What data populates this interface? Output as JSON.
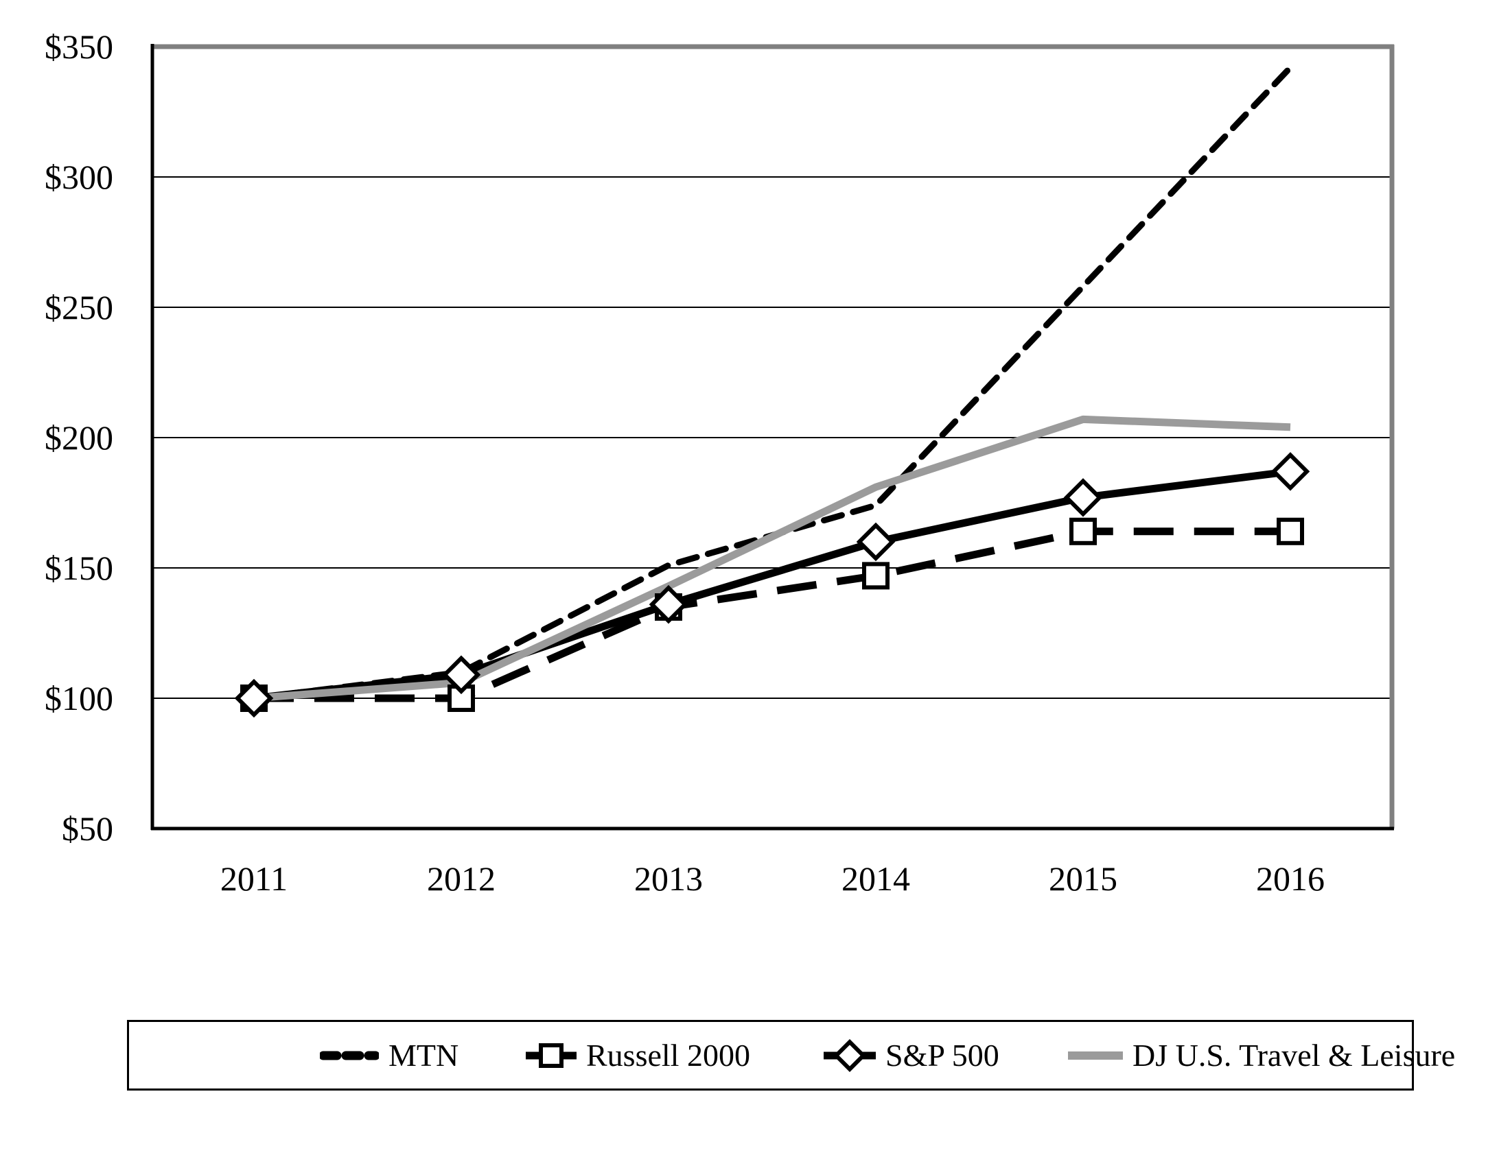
{
  "chart_data": {
    "type": "line",
    "title": "",
    "x_labels": [
      "2011",
      "2012",
      "2013",
      "2014",
      "2015",
      "2016"
    ],
    "y_ticks": [
      50,
      100,
      150,
      200,
      250,
      300,
      350
    ],
    "y_tick_labels": [
      "$50",
      "$100",
      "$150",
      "$200",
      "$250",
      "$300",
      "$350"
    ],
    "ylim": [
      50,
      350
    ],
    "grid": "horizontal",
    "legend_position": "bottom",
    "series": [
      {
        "name": "MTN",
        "values": [
          100,
          110,
          151,
          174,
          258,
          342
        ],
        "color": "#000000",
        "style": "short-dash",
        "marker": "none"
      },
      {
        "name": "Russell 2000",
        "values": [
          100,
          100,
          135,
          147,
          164,
          164
        ],
        "color": "#000000",
        "style": "long-dash",
        "marker": "square"
      },
      {
        "name": "S&P 500",
        "values": [
          100,
          109,
          136,
          160,
          177,
          187
        ],
        "color": "#000000",
        "style": "solid",
        "marker": "diamond"
      },
      {
        "name": "DJ U.S. Travel & Leisure",
        "values": [
          100,
          106,
          143,
          181,
          207,
          204
        ],
        "color": "#9b9b9b",
        "style": "solid",
        "marker": "none"
      }
    ],
    "colors": {
      "axis": "#000000",
      "gridline": "#000000",
      "frame_top_right": "#808080",
      "travel_leisure_line": "#9b9b9b"
    }
  }
}
